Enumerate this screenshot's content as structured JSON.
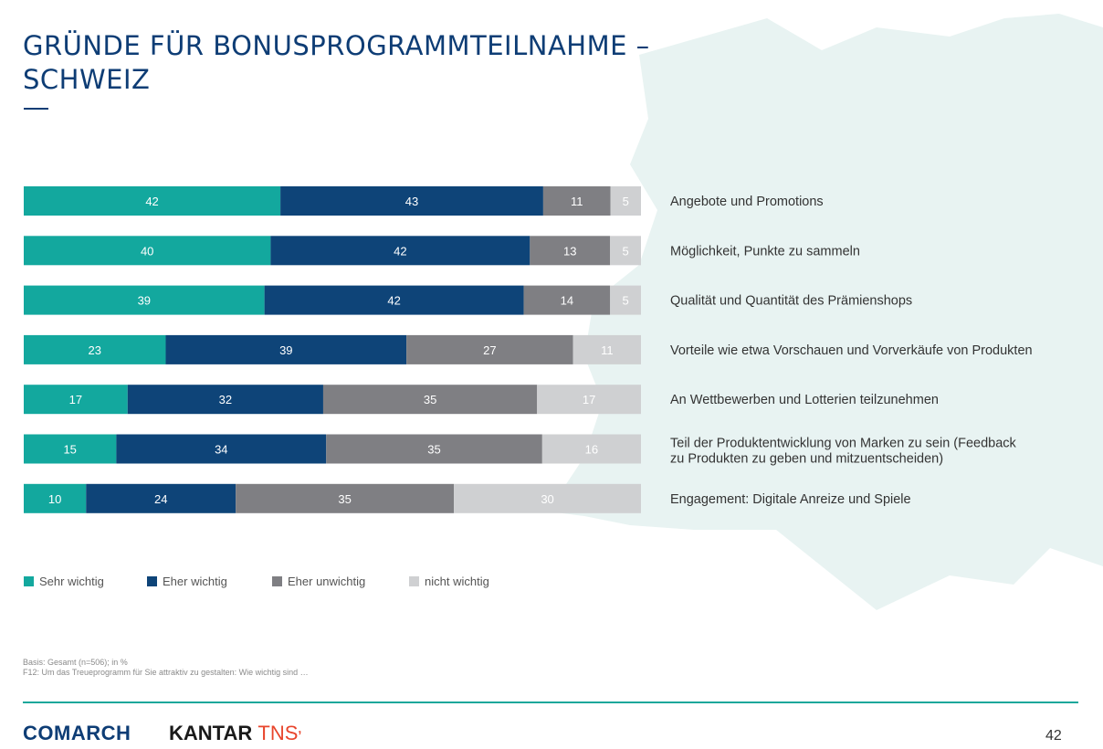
{
  "title": "GRÜNDE FÜR BONUSPROGRAMMTEILNAHME – SCHWEIZ",
  "colors": {
    "sehr_wichtig": "#13a89e",
    "eher_wichtig": "#0e4478",
    "eher_unwichtig": "#7f7f83",
    "nicht_wichtig": "#cfd0d2",
    "title": "#0e3d75",
    "accent_line": "#1aa79b",
    "background_shape": "#e7f2f1"
  },
  "chart_data": {
    "type": "bar",
    "orientation": "horizontal",
    "stacked": true,
    "unit": "%",
    "categories": [
      "Angebote und Promotions",
      "Möglichkeit, Punkte zu sammeln",
      "Qualität und Quantität des Prämienshops",
      "Vorteile wie etwa Vorschauen und Vorverkäufe von Produkten",
      "An Wettbewerben und Lotterien teilzunehmen",
      "Teil der Produktentwicklung von Marken zu sein (Feedback zu Produkten zu geben und mitzuentscheiden)",
      "Engagement: Digitale Anreize und Spiele"
    ],
    "category_lines": [
      [
        "Angebote und Promotions"
      ],
      [
        "Möglichkeit, Punkte zu sammeln"
      ],
      [
        "Qualität und Quantität des Prämienshops"
      ],
      [
        "Vorteile wie etwa Vorschauen und Vorverkäufe von Produkten"
      ],
      [
        "An Wettbewerben und Lotterien teilzunehmen"
      ],
      [
        "Teil der Produktentwicklung von Marken zu sein (Feedback",
        "zu Produkten zu geben und mitzuentscheiden)"
      ],
      [
        "Engagement: Digitale Anreize und Spiele"
      ]
    ],
    "series": [
      {
        "name": "Sehr wichtig",
        "values": [
          42,
          40,
          39,
          23,
          17,
          15,
          10
        ]
      },
      {
        "name": "Eher wichtig",
        "values": [
          43,
          42,
          42,
          39,
          32,
          34,
          24
        ]
      },
      {
        "name": "Eher unwichtig",
        "values": [
          11,
          13,
          14,
          27,
          35,
          35,
          35
        ]
      },
      {
        "name": "nicht wichtig",
        "values": [
          5,
          5,
          5,
          11,
          17,
          16,
          30
        ]
      }
    ],
    "legend_position": "bottom-left"
  },
  "legend": [
    {
      "label": "Sehr wichtig"
    },
    {
      "label": "Eher wichtig"
    },
    {
      "label": "Eher unwichtig"
    },
    {
      "label": "nicht wichtig"
    }
  ],
  "basis": {
    "line1": "Basis: Gesamt (n=506); in %",
    "line2": "F12: Um das Treueprogramm für Sie attraktiv zu gestalten: Wie wichtig sind …"
  },
  "footer": {
    "logo_left": "COMARCH",
    "logo_right_a": "KANTAR",
    "logo_right_b": "TNS",
    "page_number": "42"
  }
}
